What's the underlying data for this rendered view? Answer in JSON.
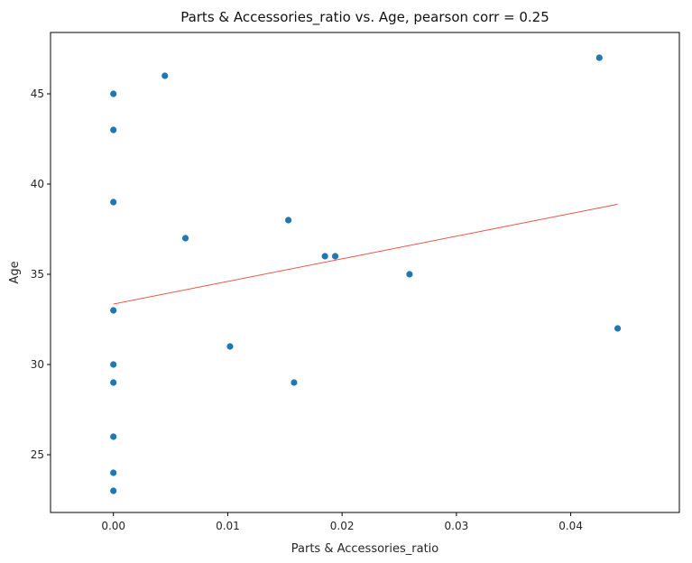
{
  "chart_data": {
    "type": "scatter",
    "title": "Parts & Accessories_ratio vs. Age, pearson corr = 0.25",
    "xlabel": "Parts & Accessories_ratio",
    "ylabel": "Age",
    "xlim": [
      -0.0055,
      0.0495
    ],
    "ylim": [
      21.8,
      48.4
    ],
    "xticks": [
      0.0,
      0.01,
      0.02,
      0.03,
      0.04
    ],
    "xtick_labels": [
      "0.00",
      "0.01",
      "0.02",
      "0.03",
      "0.04"
    ],
    "yticks": [
      25,
      30,
      35,
      40,
      45
    ],
    "ytick_labels": [
      "25",
      "30",
      "35",
      "40",
      "45"
    ],
    "grid": false,
    "point_color": "#1f77b4",
    "trend_color": "#e8554e",
    "points": [
      {
        "x": 0.0,
        "y": 45
      },
      {
        "x": 0.0,
        "y": 43
      },
      {
        "x": 0.0,
        "y": 39
      },
      {
        "x": 0.0,
        "y": 33
      },
      {
        "x": 0.0,
        "y": 30
      },
      {
        "x": 0.0,
        "y": 29
      },
      {
        "x": 0.0,
        "y": 26
      },
      {
        "x": 0.0,
        "y": 24
      },
      {
        "x": 0.0,
        "y": 23
      },
      {
        "x": 0.0045,
        "y": 46
      },
      {
        "x": 0.0063,
        "y": 37
      },
      {
        "x": 0.0102,
        "y": 31
      },
      {
        "x": 0.0153,
        "y": 38
      },
      {
        "x": 0.0158,
        "y": 29
      },
      {
        "x": 0.0185,
        "y": 36
      },
      {
        "x": 0.0194,
        "y": 36
      },
      {
        "x": 0.0259,
        "y": 35
      },
      {
        "x": 0.0425,
        "y": 47
      },
      {
        "x": 0.0441,
        "y": 32
      }
    ],
    "trend_line": {
      "x": [
        0.0,
        0.0441
      ],
      "y": [
        33.35,
        38.88
      ]
    }
  }
}
